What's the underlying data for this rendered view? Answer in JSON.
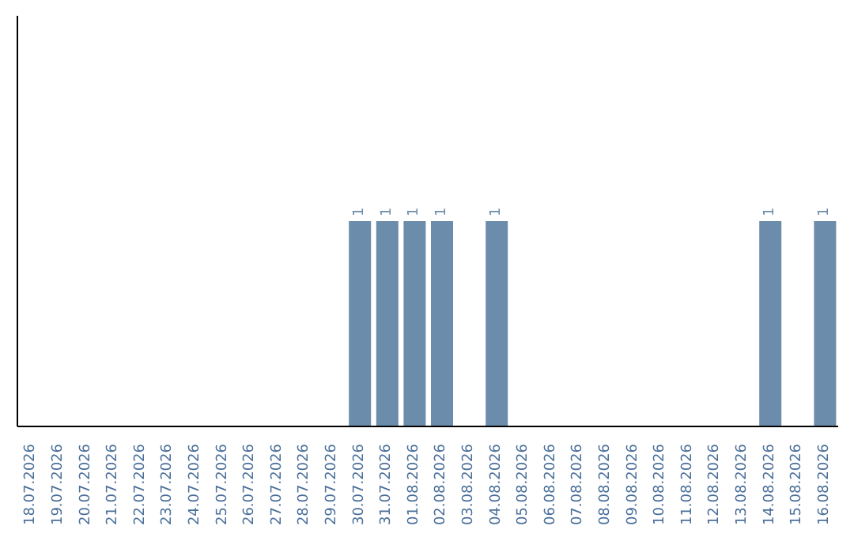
{
  "chart_data": {
    "type": "bar",
    "categories": [
      "18.07.2026",
      "19.07.2026",
      "20.07.2026",
      "21.07.2026",
      "22.07.2026",
      "23.07.2026",
      "24.07.2026",
      "25.07.2026",
      "26.07.2026",
      "27.07.2026",
      "28.07.2026",
      "29.07.2026",
      "30.07.2026",
      "31.07.2026",
      "01.08.2026",
      "02.08.2026",
      "03.08.2026",
      "04.08.2026",
      "05.08.2026",
      "06.08.2026",
      "07.08.2026",
      "08.08.2026",
      "09.08.2026",
      "10.08.2026",
      "11.08.2026",
      "12.08.2026",
      "13.08.2026",
      "14.08.2026",
      "15.08.2026",
      "16.08.2026"
    ],
    "values": [
      null,
      null,
      null,
      null,
      null,
      null,
      null,
      null,
      null,
      null,
      null,
      null,
      1,
      1,
      1,
      1,
      null,
      1,
      null,
      null,
      null,
      null,
      null,
      null,
      null,
      null,
      null,
      1,
      null,
      1
    ],
    "color": "#6b8caa",
    "ylim": [
      0,
      2
    ],
    "data_labels": true,
    "tick_labels": "x"
  }
}
